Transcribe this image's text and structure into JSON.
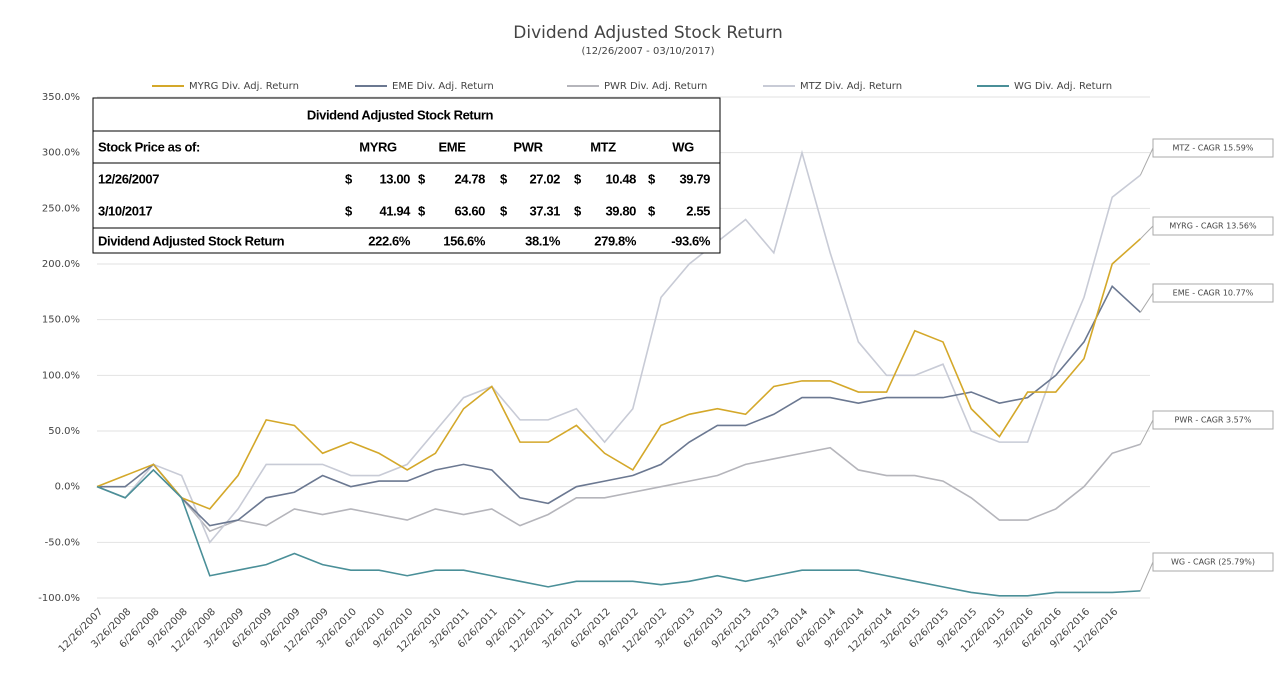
{
  "chart_data": {
    "type": "line",
    "title": "Dividend Adjusted Stock Return",
    "subtitle": "(12/26/2007 - 03/10/2017)",
    "categories": [
      "12/26/2007",
      "3/26/2008",
      "6/26/2008",
      "9/26/2008",
      "12/26/2008",
      "3/26/2009",
      "6/26/2009",
      "9/26/2009",
      "12/26/2009",
      "3/26/2010",
      "6/26/2010",
      "9/26/2010",
      "12/26/2010",
      "3/26/2011",
      "6/26/2011",
      "9/26/2011",
      "12/26/2011",
      "3/26/2012",
      "6/26/2012",
      "9/26/2012",
      "12/26/2012",
      "3/26/2013",
      "6/26/2013",
      "9/26/2013",
      "12/26/2013",
      "3/26/2014",
      "6/26/2014",
      "9/26/2014",
      "12/26/2014",
      "3/26/2015",
      "6/26/2015",
      "9/26/2015",
      "12/26/2015",
      "3/26/2016",
      "6/26/2016",
      "9/26/2016",
      "12/26/2016",
      null
    ],
    "series": [
      {
        "name": "MYRG Div. Adj. Return",
        "color": "#d4a82a",
        "values": [
          0,
          10,
          20,
          -10,
          -20,
          10,
          60,
          55,
          30,
          40,
          30,
          15,
          30,
          70,
          90,
          40,
          40,
          55,
          30,
          15,
          55,
          65,
          70,
          65,
          90,
          95,
          95,
          85,
          85,
          140,
          130,
          70,
          45,
          85,
          85,
          115,
          200,
          222.6
        ]
      },
      {
        "name": "EME Div. Adj. Return",
        "color": "#6b7891",
        "values": [
          0,
          0,
          20,
          -10,
          -35,
          -30,
          -10,
          -5,
          10,
          0,
          5,
          5,
          15,
          20,
          15,
          -10,
          -15,
          0,
          5,
          10,
          20,
          40,
          55,
          55,
          65,
          80,
          80,
          75,
          80,
          80,
          80,
          85,
          75,
          80,
          100,
          130,
          180,
          156.6
        ]
      },
      {
        "name": "PWR Div. Adj. Return",
        "color": "#b5b5bb",
        "values": [
          0,
          -10,
          15,
          -10,
          -40,
          -30,
          -35,
          -20,
          -25,
          -20,
          -25,
          -30,
          -20,
          -25,
          -20,
          -35,
          -25,
          -10,
          -10,
          -5,
          0,
          5,
          10,
          20,
          25,
          30,
          35,
          15,
          10,
          10,
          5,
          -10,
          -30,
          -30,
          -20,
          0,
          30,
          38.1
        ]
      },
      {
        "name": "MTZ Div. Adj. Return",
        "color": "#c8cbd6",
        "values": [
          0,
          -10,
          20,
          10,
          -50,
          -20,
          20,
          20,
          20,
          10,
          10,
          20,
          50,
          80,
          90,
          60,
          60,
          70,
          40,
          70,
          170,
          200,
          220,
          240,
          210,
          300,
          210,
          130,
          100,
          100,
          110,
          50,
          40,
          40,
          110,
          170,
          260,
          279.8
        ]
      },
      {
        "name": "WG Div. Adj. Return",
        "color": "#4a8f98",
        "values": [
          0,
          -10,
          15,
          -10,
          -80,
          -75,
          -70,
          -60,
          -70,
          -75,
          -75,
          -80,
          -75,
          -75,
          -80,
          -85,
          -90,
          -85,
          -85,
          -85,
          -88,
          -85,
          -80,
          -85,
          -80,
          -75,
          -75,
          -75,
          -80,
          -85,
          -90,
          -95,
          -98,
          -98,
          -95,
          -95,
          -95,
          -93.6
        ]
      }
    ],
    "ylim": [
      -100,
      350
    ],
    "yticks": [
      {
        "value": -100,
        "label": "-100.0%"
      },
      {
        "value": -50,
        "label": "-50.0%"
      },
      {
        "value": 0,
        "label": "0.0%"
      },
      {
        "value": 50,
        "label": "50.0%"
      },
      {
        "value": 100,
        "label": "100.0%"
      },
      {
        "value": 150,
        "label": "150.0%"
      },
      {
        "value": 200,
        "label": "200.0%"
      },
      {
        "value": 250,
        "label": "250.0%"
      },
      {
        "value": 300,
        "label": "300.0%"
      },
      {
        "value": 350,
        "label": "350.0%"
      }
    ],
    "grid": true,
    "legend": "top",
    "annotations": [
      "MTZ - CAGR 15.59%",
      "MYRG - CAGR 13.56%",
      "EME - CAGR 10.77%",
      "PWR - CAGR 3.57%",
      "WG - CAGR (25.79%)"
    ]
  },
  "table": {
    "title": "Dividend Adjusted Stock Return",
    "currency": "$",
    "header": [
      "Stock Price as of:",
      "MYRG",
      "EME",
      "PWR",
      "MTZ",
      "WG"
    ],
    "rows": [
      [
        "12/26/2007",
        "13.00",
        "24.78",
        "27.02",
        "10.48",
        "39.79"
      ],
      [
        "3/10/2017",
        "41.94",
        "63.60",
        "37.31",
        "39.80",
        "2.55"
      ],
      [
        "Dividend Adjusted Stock Return",
        "222.6%",
        "156.6%",
        "38.1%",
        "279.8%",
        "-93.6%"
      ]
    ]
  }
}
